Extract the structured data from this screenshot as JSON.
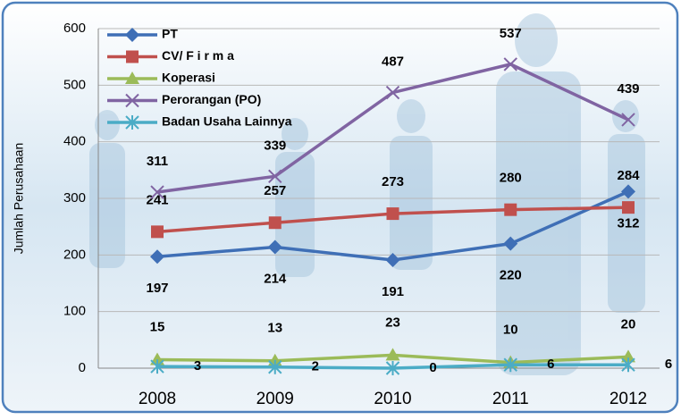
{
  "chart_data": {
    "type": "line",
    "y_label": "Jumlah Perusahaan",
    "categories": [
      "2008",
      "2009",
      "2010",
      "2011",
      "2012"
    ],
    "ylim": [
      0,
      600
    ],
    "yticks": [
      0,
      100,
      200,
      300,
      400,
      500,
      600
    ],
    "grid": true,
    "legend": "top-left",
    "series": [
      {
        "name": "PT",
        "color": "#3f6fb6",
        "marker": "diamond",
        "values": [
          197,
          214,
          191,
          220,
          312
        ]
      },
      {
        "name": "CV/ F i r m a",
        "color": "#c0504d",
        "marker": "square",
        "values": [
          241,
          257,
          273,
          280,
          284
        ]
      },
      {
        "name": "Koperasi",
        "color": "#9bbb59",
        "marker": "triangle",
        "values": [
          15,
          13,
          23,
          10,
          20
        ]
      },
      {
        "name": "Perorangan (PO)",
        "color": "#8064a2",
        "marker": "x",
        "values": [
          311,
          339,
          487,
          537,
          439
        ]
      },
      {
        "name": "Badan Usaha Lainnya",
        "color": "#4bacc6",
        "marker": "star",
        "values": [
          3,
          2,
          0,
          6,
          6
        ]
      }
    ]
  }
}
